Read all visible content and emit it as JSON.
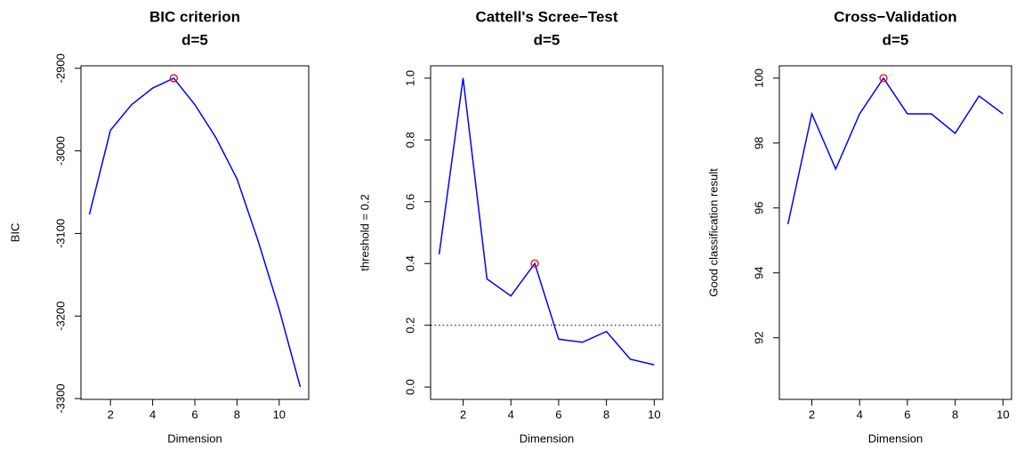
{
  "chart_data": [
    {
      "type": "line",
      "title": "BIC criterion",
      "subtitle": "d=5",
      "xlabel": "Dimension",
      "ylabel": "BIC",
      "x": [
        1,
        2,
        3,
        4,
        5,
        6,
        7,
        8,
        9,
        10,
        11
      ],
      "values": [
        -3077,
        -2975,
        -2944,
        -2924,
        -2912,
        -2944,
        -2984,
        -3034,
        -3109,
        -3192,
        -3286
      ],
      "color": "#0000ff",
      "highlight": {
        "x": 5,
        "color": "#ff0000"
      },
      "xlim": [
        0.6,
        11.4
      ],
      "ylim": [
        -3301,
        -2897
      ],
      "xticks": [
        2,
        4,
        6,
        8,
        10
      ],
      "yticks": [
        -3300,
        -3200,
        -3100,
        -3000,
        -2900
      ]
    },
    {
      "type": "line",
      "title": "Cattell's Scree−Test",
      "subtitle": "d=5",
      "xlabel": "Dimension",
      "ylabel": "threshold = 0.2",
      "x": [
        1,
        2,
        3,
        4,
        5,
        6,
        7,
        8,
        9,
        10
      ],
      "values": [
        0.43,
        1.0,
        0.35,
        0.295,
        0.4,
        0.155,
        0.145,
        0.18,
        0.09,
        0.072
      ],
      "color": "#0000ff",
      "highlight": {
        "x": 5,
        "color": "#ff0000"
      },
      "hline": 0.2,
      "xlim": [
        0.64,
        10.36
      ],
      "ylim": [
        -0.04,
        1.04
      ],
      "xticks": [
        2,
        4,
        6,
        8,
        10
      ],
      "yticks": [
        {
          "value": 0,
          "label": "0.0"
        },
        0.2,
        0.4,
        0.6,
        0.8,
        {
          "value": 1,
          "label": "1.0"
        }
      ]
    },
    {
      "type": "line",
      "title": "Cross−Validation",
      "subtitle": "d=5",
      "xlabel": "Dimension",
      "ylabel": "Good classification result",
      "x": [
        1,
        2,
        3,
        4,
        5,
        6,
        7,
        8,
        9,
        10
      ],
      "values": [
        95.5,
        98.9,
        97.2,
        98.9,
        100,
        98.9,
        98.9,
        98.3,
        99.45,
        98.9
      ],
      "color": "#0000ff",
      "highlight": {
        "x": 5,
        "color": "#ff0000"
      },
      "xlim": [
        0.64,
        10.36
      ],
      "ylim": [
        90.1,
        100.38
      ],
      "xticks": [
        2,
        4,
        6,
        8,
        10
      ],
      "yticks": [
        92,
        94,
        96,
        98,
        100
      ]
    }
  ]
}
